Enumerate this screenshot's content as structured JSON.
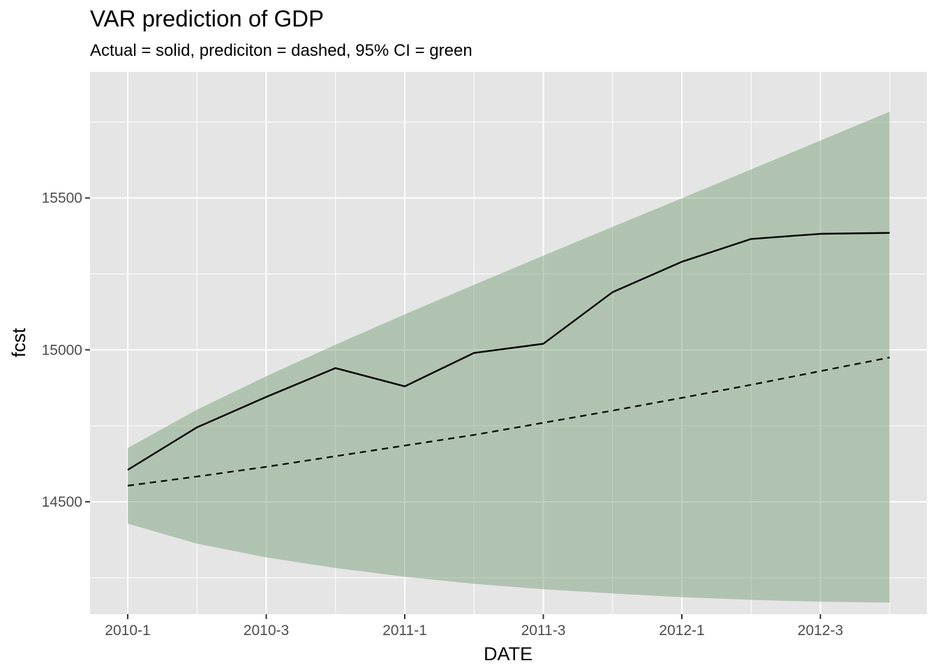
{
  "chart_data": {
    "type": "line",
    "title": "VAR prediction of GDP",
    "subtitle": "Actual = solid, prediciton = dashed, 95% CI = green",
    "xlabel": "DATE",
    "ylabel": "fcst",
    "x": [
      "2010-1",
      "2010-2",
      "2010-3",
      "2010-4",
      "2011-1",
      "2011-2",
      "2011-3",
      "2011-4",
      "2012-1",
      "2012-2",
      "2012-3",
      "2012-4"
    ],
    "x_tick_labels": [
      "2010-1",
      "2010-3",
      "2011-1",
      "2011-3",
      "2012-1",
      "2012-3"
    ],
    "y_ticks": [
      14500,
      15000,
      15500
    ],
    "ylim": [
      14130,
      15915
    ],
    "grid": true,
    "series": [
      {
        "role": "actual",
        "style": "solid",
        "color": "#000000",
        "values": [
          14605,
          14745,
          14845,
          14940,
          14880,
          14990,
          15020,
          15190,
          15290,
          15365,
          15382,
          15385
        ]
      },
      {
        "role": "prediction",
        "style": "dashed",
        "color": "#000000",
        "values": [
          14553,
          14583,
          14615,
          14650,
          14685,
          14720,
          14760,
          14800,
          14842,
          14885,
          14930,
          14975
        ]
      }
    ],
    "band": {
      "role": "95% CI",
      "color": "#6e9a6e",
      "lower": [
        14428,
        14362,
        14317,
        14282,
        14253,
        14230,
        14212,
        14198,
        14186,
        14177,
        14171,
        14168
      ],
      "upper": [
        14677,
        14803,
        14913,
        15017,
        15117,
        15214,
        15310,
        15405,
        15499,
        15594,
        15689,
        15784
      ]
    },
    "colors": {
      "panel_background": "#e5e5e5",
      "gridline": "#ffffff",
      "ribbon": "#6e9a6e",
      "line": "#000000"
    }
  }
}
